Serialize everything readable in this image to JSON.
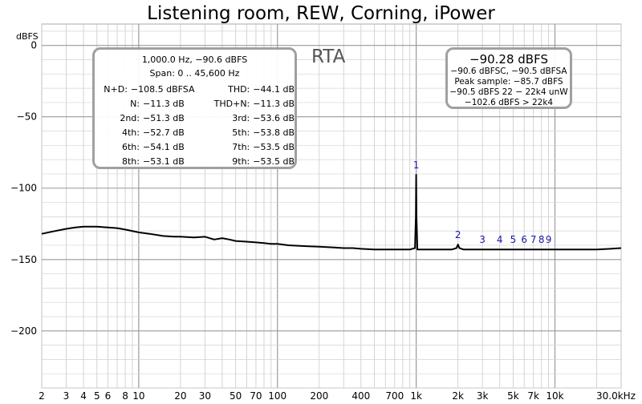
{
  "chart_data": {
    "type": "line",
    "title": "Listening room, REW, Corning, iPower",
    "ylabel": "dBFS",
    "xlim": [
      2,
      30000
    ],
    "ylim": [
      -240,
      15
    ],
    "x_scale": "log",
    "grid": true,
    "x_tick_labels": [
      {
        "value": 2,
        "label": "2"
      },
      {
        "value": 3,
        "label": "3"
      },
      {
        "value": 4,
        "label": "4"
      },
      {
        "value": 5,
        "label": "5"
      },
      {
        "value": 6,
        "label": "6"
      },
      {
        "value": 8,
        "label": "8"
      },
      {
        "value": 10,
        "label": "10"
      },
      {
        "value": 20,
        "label": "20"
      },
      {
        "value": 30,
        "label": "30"
      },
      {
        "value": 50,
        "label": "50"
      },
      {
        "value": 70,
        "label": "70"
      },
      {
        "value": 100,
        "label": "100"
      },
      {
        "value": 200,
        "label": "200"
      },
      {
        "value": 400,
        "label": "400"
      },
      {
        "value": 700,
        "label": "700"
      },
      {
        "value": 1000,
        "label": "1k"
      },
      {
        "value": 2000,
        "label": "2k"
      },
      {
        "value": 3000,
        "label": "3k"
      },
      {
        "value": 5000,
        "label": "5k"
      },
      {
        "value": 7000,
        "label": "7k"
      },
      {
        "value": 10000,
        "label": "10k"
      },
      {
        "value": 30000,
        "label": "30.0kHz"
      }
    ],
    "y_ticks": [
      {
        "value": 0,
        "label": "0"
      },
      {
        "value": -50,
        "label": "−50"
      },
      {
        "value": -100,
        "label": "−100"
      },
      {
        "value": -150,
        "label": "−150"
      },
      {
        "value": -200,
        "label": "−200"
      }
    ],
    "series": [
      {
        "color": "#000000",
        "x": [
          2,
          2.5,
          3,
          3.5,
          4,
          4.5,
          5,
          6,
          7,
          8,
          10,
          12,
          15,
          18,
          20,
          25,
          30,
          35,
          40,
          45,
          50,
          60,
          70,
          80,
          90,
          100,
          120,
          150,
          200,
          250,
          300,
          350,
          400,
          500,
          600,
          700,
          800,
          900,
          980,
          995,
          1000,
          1005,
          1020,
          1100,
          1300,
          1500,
          1800,
          1950,
          2000,
          2050,
          2200,
          2700,
          3000,
          3300,
          4000,
          5000,
          6000,
          7000,
          8000,
          9000,
          10000,
          12000,
          15000,
          20000,
          25000,
          30000
        ],
        "y": [
          -132,
          -130,
          -128.5,
          -127.5,
          -127,
          -127,
          -127,
          -127.5,
          -128,
          -129,
          -131,
          -132,
          -133.5,
          -134,
          -134,
          -134.5,
          -134,
          -136,
          -135,
          -136,
          -137,
          -137.5,
          -138,
          -138.5,
          -139,
          -139,
          -140,
          -140.5,
          -141,
          -141.5,
          -142,
          -142,
          -142.5,
          -143,
          -143,
          -143,
          -143,
          -143,
          -142,
          -120,
          -90.6,
          -120,
          -143,
          -143,
          -143,
          -143,
          -143,
          -142,
          -139.5,
          -142,
          -143,
          -143,
          -143,
          -143,
          -143,
          -143,
          -143,
          -143,
          -143,
          -143,
          -143,
          -143,
          -143,
          -143,
          -142.5,
          -142
        ]
      }
    ],
    "annotations": [
      {
        "label": "1",
        "x": 1000,
        "y": -90.6
      },
      {
        "label": "2",
        "x": 2000,
        "y": -139.5
      },
      {
        "label": "3",
        "x": 3000,
        "y": -143
      },
      {
        "label": "4",
        "x": 4000,
        "y": -143
      },
      {
        "label": "5",
        "x": 5000,
        "y": -143
      },
      {
        "label": "6",
        "x": 6000,
        "y": -143
      },
      {
        "label": "7",
        "x": 7000,
        "y": -143
      },
      {
        "label": "8",
        "x": 8000,
        "y": -143
      },
      {
        "label": "9",
        "x": 9000,
        "y": -143
      }
    ],
    "panel_label": "RTA"
  },
  "distortion_box": {
    "header": "1,000.0 Hz, −90.6 dBFS",
    "span": "Span: 0 .. 45,600 Hz",
    "rows": [
      {
        "l_label": "N+D:",
        "l_value": "−108.5 dBFSA",
        "r_label": "THD:",
        "r_value": "−44.1 dB"
      },
      {
        "l_label": "N:",
        "l_value": "−11.3 dB",
        "r_label": "THD+N:",
        "r_value": "−11.3 dB"
      },
      {
        "l_label": "2nd:",
        "l_value": "−51.3 dB",
        "r_label": "3rd:",
        "r_value": "−53.6 dB"
      },
      {
        "l_label": "4th:",
        "l_value": "−52.7 dB",
        "r_label": "5th:",
        "r_value": "−53.8 dB"
      },
      {
        "l_label": "6th:",
        "l_value": "−54.1 dB",
        "r_label": "7th:",
        "r_value": "−53.5 dB"
      },
      {
        "l_label": "8th:",
        "l_value": "−53.1 dB",
        "r_label": "9th:",
        "r_value": "−53.5 dB"
      }
    ]
  },
  "level_box": {
    "main": "−90.28 dBFS",
    "line1": "−90.6 dBFSC, −90.5 dBFSA",
    "line2": "Peak sample: −85.7 dBFS",
    "line3": "−90.5 dBFS 22 − 22k4 unW",
    "line4": "−102.6 dBFS > 22k4"
  }
}
